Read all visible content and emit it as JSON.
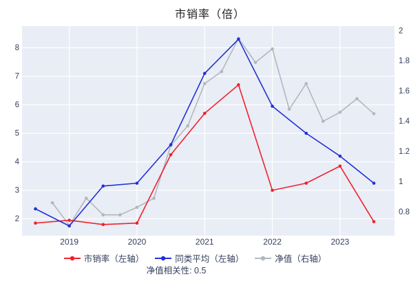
{
  "title": "市销率（倍）",
  "colors": {
    "plot_bg": "#e9edf6",
    "grid": "#ffffff",
    "tick_label": "#333f5b",
    "title_color": "#1f1f1f",
    "red": "#f0212d",
    "blue": "#2330d4",
    "gray": "#b2b7bf"
  },
  "chart_data": {
    "type": "line",
    "title": "市销率（倍）",
    "left_axis": {
      "min": 2,
      "max": 8,
      "ticks": [
        2,
        3,
        4,
        5,
        6,
        7,
        8
      ],
      "labels": [
        "2",
        "3",
        "4",
        "5",
        "6",
        "7",
        "8"
      ]
    },
    "right_axis": {
      "min": 0.8,
      "max": 2,
      "ticks": [
        0.8,
        1,
        1.2,
        1.4,
        1.6,
        1.8,
        2
      ],
      "labels": [
        "0.8",
        "1",
        "1.2",
        "1.4",
        "1.6",
        "1.8",
        "2"
      ]
    },
    "x_axis": {
      "year_labels": [
        "2019",
        "2020",
        "2021",
        "2022",
        "2023"
      ],
      "year_t": [
        1,
        3,
        5,
        7,
        9
      ]
    },
    "series": [
      {
        "name": "市销率（左轴）",
        "axis": "left",
        "color_key": "red",
        "t": [
          0,
          1,
          2,
          3,
          4,
          5,
          6,
          7,
          8,
          9,
          10
        ],
        "values": [
          1.85,
          1.95,
          1.8,
          1.85,
          4.25,
          5.7,
          6.7,
          3.0,
          3.25,
          3.85,
          1.9
        ]
      },
      {
        "name": "同类平均（左轴）",
        "axis": "left",
        "color_key": "blue",
        "t": [
          0,
          1,
          2,
          3,
          4,
          5,
          6,
          7,
          8,
          9,
          10
        ],
        "values": [
          2.35,
          1.75,
          3.15,
          3.25,
          4.6,
          7.1,
          8.3,
          5.95,
          5.0,
          4.2,
          3.25
        ]
      },
      {
        "name": "净值（右轴）",
        "axis": "right",
        "color_key": "gray",
        "t": [
          0.5,
          1,
          1.5,
          2,
          2.5,
          3,
          3.5,
          4,
          4.5,
          5,
          5.5,
          6,
          6.5,
          7,
          7.5,
          8,
          8.5,
          9,
          9.5,
          10
        ],
        "values": [
          0.86,
          0.71,
          0.89,
          0.78,
          0.78,
          0.83,
          0.89,
          1.24,
          1.37,
          1.65,
          1.73,
          1.95,
          1.79,
          1.88,
          1.48,
          1.65,
          1.4,
          1.46,
          1.55,
          1.45
        ]
      }
    ],
    "legend": [
      "市销率（左轴）",
      "同类平均（左轴）",
      "净值（右轴）"
    ],
    "footnote": "净值相关性: 0.5"
  }
}
